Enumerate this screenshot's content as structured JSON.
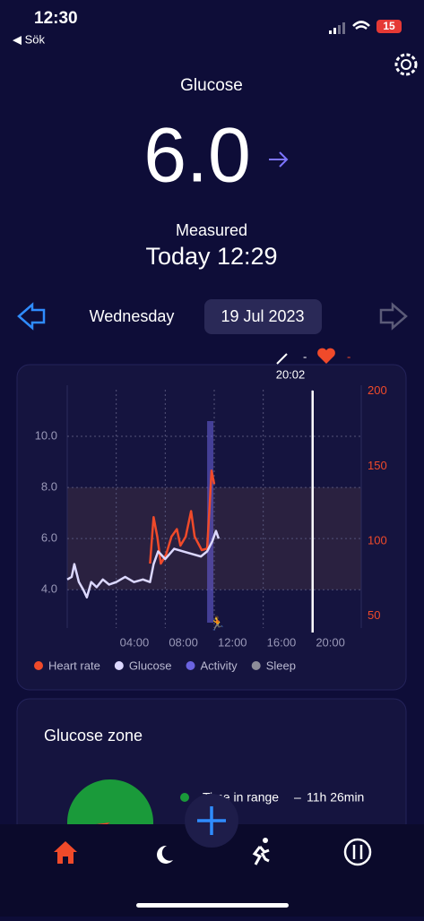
{
  "status_bar": {
    "time": "12:30",
    "back": "◀ Sök",
    "battery": "15"
  },
  "header": {
    "title": "Glucose",
    "value": "6.0",
    "measured_label": "Measured",
    "measured_time": "Today 12:29"
  },
  "date_nav": {
    "weekday": "Wednesday",
    "date": "19 Jul 2023"
  },
  "chart": {
    "type": "line",
    "cursor_time": "20:02",
    "cursor_dash": "-",
    "heart_dash": "-",
    "xlim": [
      0,
      24
    ],
    "xticks": [
      {
        "value": 4,
        "label": "04:00"
      },
      {
        "value": 8,
        "label": "08:00"
      },
      {
        "value": 12,
        "label": "12:00"
      },
      {
        "value": 16,
        "label": "16:00"
      },
      {
        "value": 20,
        "label": "20:00"
      }
    ],
    "ylim": [
      2.5,
      12
    ],
    "yticks": [
      {
        "value": 4,
        "label": "4.0"
      },
      {
        "value": 6,
        "label": "6.0"
      },
      {
        "value": 8,
        "label": "8.0"
      },
      {
        "value": 10,
        "label": "10.0"
      }
    ],
    "y2lim": [
      42,
      204
    ],
    "y2ticks": [
      50,
      100,
      150,
      200
    ],
    "target_range": [
      4,
      8
    ],
    "cursor_x": 20.03,
    "series": [
      {
        "name": "Heart rate",
        "color": "#f04a2a",
        "axis": "y2",
        "x": [
          6.76,
          7.05,
          7.35,
          7.64,
          8.07,
          8.51,
          8.95,
          9.24,
          9.67,
          10.11,
          10.4,
          10.98,
          11.42,
          11.64,
          11.78,
          12
        ],
        "values": [
          85,
          116,
          103,
          85,
          91,
          103,
          108,
          97,
          103,
          120,
          103,
          94,
          95,
          126,
          147,
          138
        ]
      },
      {
        "name": "Glucose",
        "color": "#dcd8ff",
        "x": [
          0,
          0.36,
          0.58,
          0.95,
          1.31,
          1.6,
          1.96,
          2.4,
          2.91,
          3.42,
          4,
          4.73,
          5.45,
          6.18,
          6.76,
          7.05,
          7.42,
          8,
          8.73,
          9.45,
          10.18,
          10.91,
          11.42,
          11.85,
          12.14,
          12.36
        ],
        "values": [
          4.4,
          4.5,
          5.0,
          4.3,
          4.0,
          3.7,
          4.3,
          4.1,
          4.4,
          4.2,
          4.3,
          4.5,
          4.3,
          4.4,
          4.3,
          5.0,
          5.5,
          5.2,
          5.6,
          5.5,
          5.4,
          5.3,
          5.5,
          5.9,
          6.3,
          6.0
        ]
      }
    ],
    "activity": {
      "name": "Activity",
      "color": "#6b63e0",
      "x": [
        11.42,
        11.93
      ]
    },
    "sleep": {
      "name": "Sleep",
      "color": "#8d8d99"
    }
  },
  "zone": {
    "title": "Glucose zone",
    "values": [
      93,
      7
    ],
    "colors": [
      "#1a9a3a",
      "#f04a2a"
    ],
    "legend_label": "Time in range",
    "legend_dash": "–",
    "legend_value": "11h 26min"
  }
}
